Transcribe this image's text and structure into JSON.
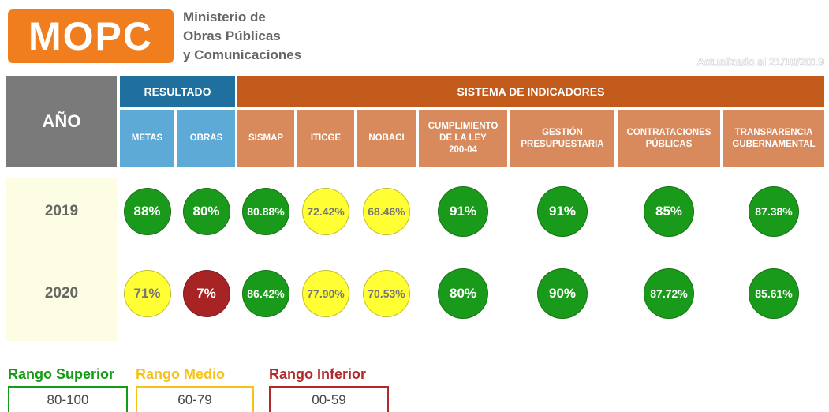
{
  "header": {
    "logo": "MOPC",
    "ministry": [
      "Ministerio de",
      "Obras Públicas",
      "y Comunicaciones"
    ],
    "updated": "Actualizado al 21/10/2019"
  },
  "table": {
    "year_header": "AÑO",
    "groups": [
      {
        "title": "RESULTADO",
        "color": "#1f6f9f",
        "sub_color": "#5eaad6",
        "columns": [
          {
            "lines": [
              "METAS"
            ]
          },
          {
            "lines": [
              "OBRAS"
            ]
          }
        ]
      },
      {
        "title": "SISTEMA DE INDICADORES",
        "color": "#c25a1c",
        "sub_color": "#d98a5c",
        "columns": [
          {
            "lines": [
              "SISMAP"
            ]
          },
          {
            "lines": [
              "ITICGE"
            ]
          },
          {
            "lines": [
              "NOBACI"
            ]
          },
          {
            "lines": [
              "CUMPLIMIENTO",
              "DE LA LEY",
              "200-04"
            ]
          },
          {
            "lines": [
              "GESTIÓN",
              "PRESUPUESTARIA"
            ]
          },
          {
            "lines": [
              "CONTRATACIONES",
              "PÚBLICAS"
            ]
          },
          {
            "lines": [
              "TRANSPARENCIA",
              "GUBERNAMENTAL"
            ]
          }
        ]
      }
    ],
    "rows": [
      {
        "year": "2019",
        "cells": [
          {
            "text": "88%",
            "color": "#1a9a1a"
          },
          {
            "text": "80%",
            "color": "#1a9a1a"
          },
          {
            "text": "80.88%",
            "color": "#1a9a1a"
          },
          {
            "text": "72.42%",
            "color": "#ffff33"
          },
          {
            "text": "68.46%",
            "color": "#ffff33"
          },
          {
            "text": "91%",
            "color": "#1a9a1a"
          },
          {
            "text": "91%",
            "color": "#1a9a1a"
          },
          {
            "text": "85%",
            "color": "#1a9a1a"
          },
          {
            "text": "87.38%",
            "color": "#1a9a1a"
          }
        ]
      },
      {
        "year": "2020",
        "cells": [
          {
            "text": "71%",
            "color": "#ffff33"
          },
          {
            "text": "7%",
            "color": "#a82424"
          },
          {
            "text": "86.42%",
            "color": "#1a9a1a"
          },
          {
            "text": "77.90%",
            "color": "#ffff33"
          },
          {
            "text": "70.53%",
            "color": "#ffff33"
          },
          {
            "text": "80%",
            "color": "#1a9a1a"
          },
          {
            "text": "90%",
            "color": "#1a9a1a"
          },
          {
            "text": "87.72%",
            "color": "#1a9a1a"
          },
          {
            "text": "85.61%",
            "color": "#1a9a1a"
          }
        ]
      }
    ]
  },
  "legend": [
    {
      "title": "Rango Superior",
      "range": "80-100",
      "color": "#159b15"
    },
    {
      "title": "Rango Medio",
      "range": "60-79",
      "color": "#f5c21b"
    },
    {
      "title": "Rango Inferior",
      "range": "00-59",
      "color": "#b02a2a"
    }
  ]
}
